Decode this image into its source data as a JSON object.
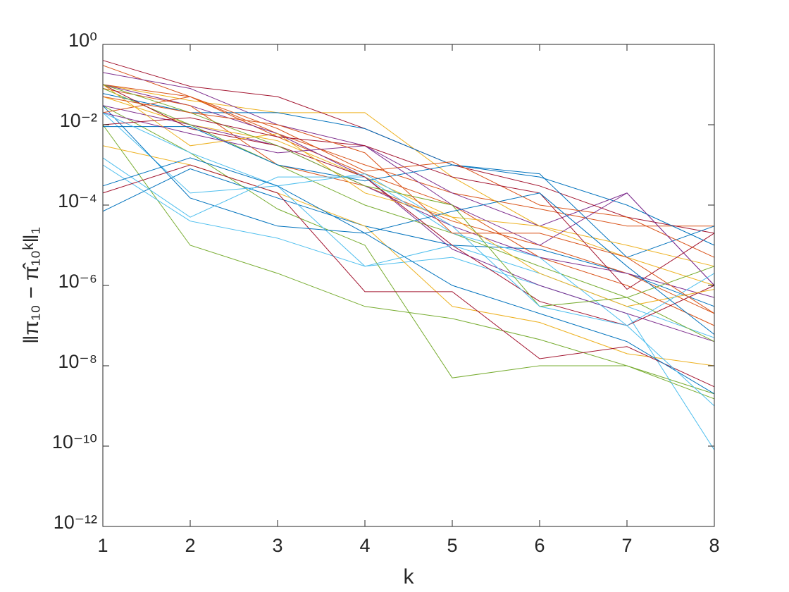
{
  "chart_data": {
    "type": "line",
    "xlabel": "k",
    "ylabel": "‖π₁₀ − π̂₁₀ᵏ‖₁",
    "log_y": true,
    "grid": false,
    "xlim": [
      1,
      8
    ],
    "xticks": [
      1,
      2,
      3,
      4,
      5,
      6,
      7,
      8
    ],
    "ylim": [
      1e-12,
      1
    ],
    "yticks": [
      {
        "value": 1e-12,
        "label": "10⁻¹²"
      },
      {
        "value": 1e-10,
        "label": "10⁻¹⁰"
      },
      {
        "value": 1e-08,
        "label": "10⁻⁸"
      },
      {
        "value": 1e-06,
        "label": "10⁻⁶"
      },
      {
        "value": 0.0001,
        "label": "10⁻⁴"
      },
      {
        "value": 0.01,
        "label": "10⁻²"
      },
      {
        "value": 1,
        "label": "10⁰"
      }
    ],
    "x": [
      1,
      2,
      3,
      4,
      5,
      6,
      7,
      8
    ],
    "series": [
      {
        "color": "#0072BD",
        "values": [
          7e-05,
          0.0008,
          0.00015,
          3e-05,
          1e-05,
          8e-06,
          2e-06,
          3e-07
        ]
      },
      {
        "color": "#D95319",
        "values": [
          0.3,
          0.05,
          0.006,
          0.001,
          0.0002,
          8e-05,
          3e-05,
          3e-05
        ]
      },
      {
        "color": "#EDB120",
        "values": [
          0.1,
          0.04,
          0.02,
          0.02,
          0.0005,
          3e-05,
          5e-06,
          1e-06
        ]
      },
      {
        "color": "#7E2F8E",
        "values": [
          0.2,
          0.08,
          0.01,
          0.003,
          0.0002,
          3e-05,
          0.0002,
          1e-06
        ]
      },
      {
        "color": "#77AC30",
        "values": [
          0.01,
          1e-05,
          2e-06,
          3e-07,
          1.5e-07,
          4.5e-08,
          1e-08,
          2e-09
        ]
      },
      {
        "color": "#4DBEEE",
        "values": [
          0.001,
          4e-05,
          1.5e-05,
          3e-06,
          5e-06,
          1e-06,
          2e-07,
          8e-11
        ]
      },
      {
        "color": "#A2142F",
        "values": [
          0.4,
          0.09,
          0.05,
          0.008,
          0.001,
          0.0003,
          5e-05,
          2e-05
        ]
      },
      {
        "color": "#0072BD",
        "values": [
          0.06,
          0.02,
          0.02,
          0.008,
          0.001,
          0.0006,
          5e-06,
          3e-05
        ]
      },
      {
        "color": "#D95319",
        "values": [
          0.1,
          0.05,
          0.005,
          0.0006,
          0.0001,
          5e-06,
          1e-06,
          1e-07
        ]
      },
      {
        "color": "#EDB120",
        "values": [
          0.003,
          0.001,
          0.0002,
          3e-05,
          3e-07,
          1.2e-07,
          2e-08,
          1e-08
        ]
      },
      {
        "color": "#7E2F8E",
        "values": [
          0.1,
          0.03,
          0.006,
          0.0005,
          8e-06,
          1e-06,
          2e-07,
          4e-08
        ]
      },
      {
        "color": "#77AC30",
        "values": [
          0.03,
          0.002,
          8e-05,
          1e-05,
          5e-09,
          1e-08,
          1e-08,
          1.5e-09
        ]
      },
      {
        "color": "#4DBEEE",
        "values": [
          0.02,
          0.0002,
          0.0003,
          3e-06,
          1e-05,
          2e-06,
          3e-07,
          5e-08
        ]
      },
      {
        "color": "#A2142F",
        "values": [
          0.0002,
          0.001,
          0.0002,
          7e-07,
          7e-07,
          1.5e-08,
          3e-08,
          3e-09
        ]
      },
      {
        "color": "#0072BD",
        "values": [
          0.03,
          0.00015,
          3e-05,
          2e-05,
          1e-06,
          2e-07,
          4e-08,
          2e-09
        ]
      },
      {
        "color": "#D95319",
        "values": [
          0.08,
          0.03,
          0.001,
          0.0003,
          4e-05,
          1e-05,
          2e-06,
          2e-07
        ]
      },
      {
        "color": "#EDB120",
        "values": [
          0.05,
          0.01,
          0.004,
          0.0005,
          5e-05,
          3e-05,
          1e-05,
          3e-06
        ]
      },
      {
        "color": "#7E2F8E",
        "values": [
          0.03,
          0.01,
          0.003,
          0.0003,
          3e-05,
          5e-06,
          2e-06,
          5e-07
        ]
      },
      {
        "color": "#77AC30",
        "values": [
          0.08,
          0.01,
          0.001,
          0.0001,
          2e-05,
          3e-06,
          5e-07,
          3e-06
        ]
      },
      {
        "color": "#4DBEEE",
        "values": [
          0.0015,
          5e-05,
          0.0005,
          0.0005,
          2e-05,
          5e-06,
          1e-07,
          1e-09
        ]
      },
      {
        "color": "#A2142F",
        "values": [
          0.1,
          0.008,
          0.003,
          0.0005,
          1e-05,
          4e-07,
          1e-07,
          1e-06
        ]
      },
      {
        "color": "#0072BD",
        "values": [
          0.009,
          0.009,
          0.001,
          0.0004,
          0.001,
          0.0005,
          0.0001,
          1e-05
        ]
      },
      {
        "color": "#D95319",
        "values": [
          0.02,
          0.05,
          0.008,
          0.0007,
          0.0012,
          0.0001,
          5e-05,
          5e-06
        ]
      },
      {
        "color": "#EDB120",
        "values": [
          0.1,
          0.003,
          0.006,
          0.0002,
          5e-05,
          2e-06,
          3e-07,
          8e-07
        ]
      },
      {
        "color": "#7E2F8E",
        "values": [
          0.02,
          0.006,
          0.002,
          0.003,
          0.0001,
          1e-05,
          0.0002,
          1e-06
        ]
      },
      {
        "color": "#77AC30",
        "values": [
          0.1,
          0.02,
          0.003,
          0.0003,
          0.0001,
          3e-07,
          5e-07,
          4e-08
        ]
      },
      {
        "color": "#4DBEEE",
        "values": [
          0.02,
          0.002,
          0.0003,
          0.0006,
          3e-05,
          3e-07,
          1e-07,
          2e-06
        ]
      },
      {
        "color": "#A2142F",
        "values": [
          0.01,
          0.015,
          0.005,
          0.003,
          0.0005,
          0.0002,
          8e-07,
          2e-05
        ]
      },
      {
        "color": "#0072BD",
        "values": [
          0.0003,
          0.0015,
          0.0003,
          2e-05,
          7e-05,
          0.0002,
          3e-06,
          6e-08
        ]
      },
      {
        "color": "#D95319",
        "values": [
          0.05,
          0.02,
          0.01,
          0.002,
          2e-05,
          2e-05,
          5e-06,
          2e-07
        ]
      }
    ]
  }
}
